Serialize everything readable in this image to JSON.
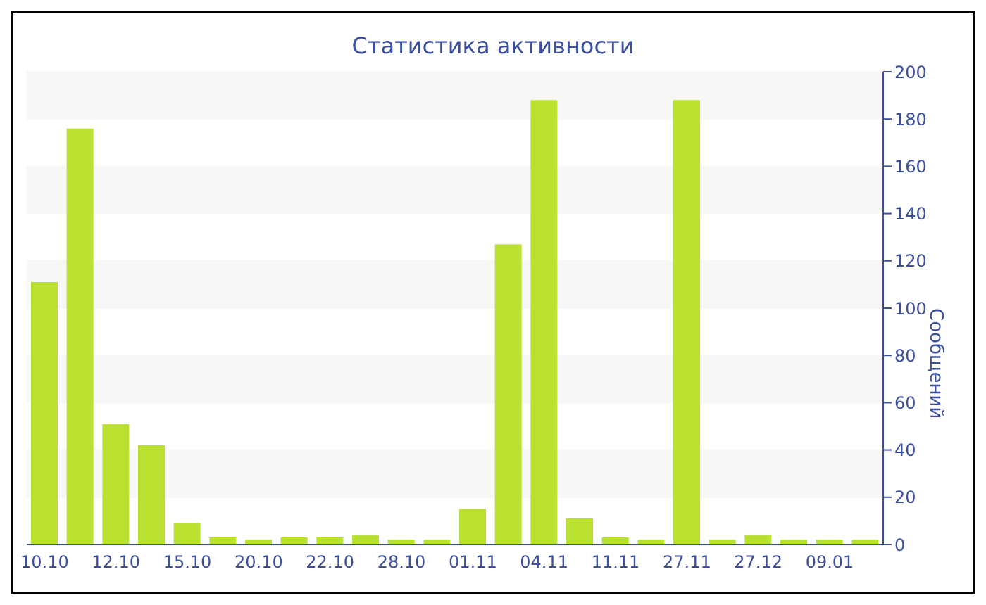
{
  "chart_data": {
    "type": "bar",
    "title": "Статистика активности",
    "ylabel": "Сообщений",
    "categories": [
      "10.10",
      null,
      "12.10",
      null,
      "15.10",
      null,
      "20.10",
      null,
      "22.10",
      null,
      "28.10",
      null,
      "01.11",
      null,
      "04.11",
      null,
      "11.11",
      null,
      "27.11",
      null,
      "27.12",
      null,
      "09.01",
      null
    ],
    "values": [
      111,
      176,
      51,
      42,
      9,
      3,
      2,
      3,
      3,
      4,
      2,
      2,
      15,
      127,
      188,
      11,
      3,
      2,
      188,
      2,
      4,
      2,
      2,
      2
    ],
    "color": "#bbe130",
    "ylim": [
      0,
      200
    ],
    "yticks": [
      0,
      20,
      40,
      60,
      80,
      100,
      120,
      140,
      160,
      180,
      200
    ],
    "grid": "y"
  }
}
